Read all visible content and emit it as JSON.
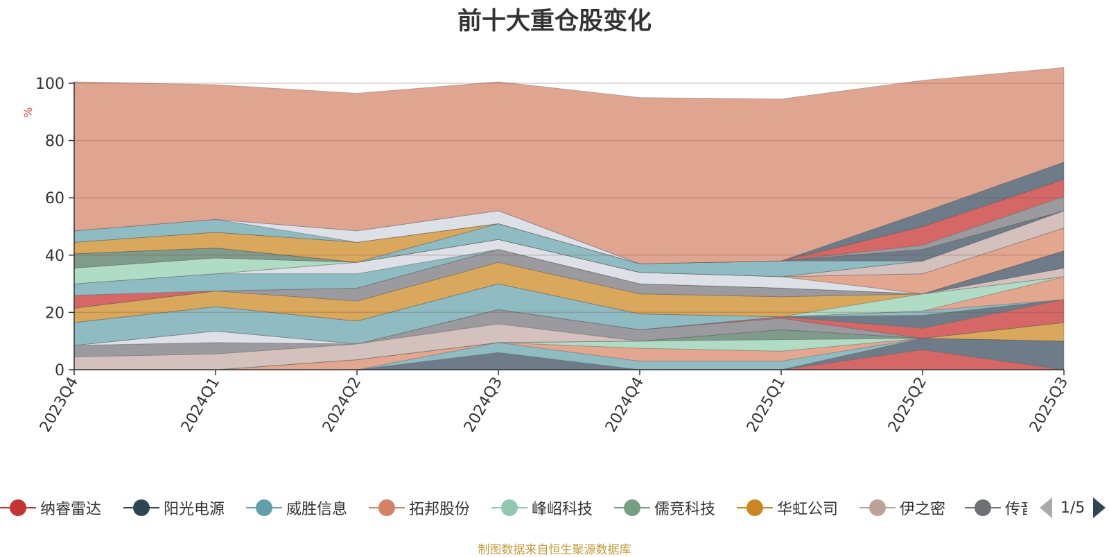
{
  "chart_data": {
    "type": "area",
    "stacked": true,
    "title": "前十大重仓股变化",
    "ylabel": "%",
    "ylim": [
      0,
      100
    ],
    "yticks": [
      0,
      20,
      40,
      60,
      80,
      100
    ],
    "categories": [
      "2023Q4",
      "2024Q1",
      "2024Q2",
      "2024Q3",
      "2024Q4",
      "2025Q1",
      "2025Q2",
      "2025Q3"
    ],
    "series": [
      {
        "color": "#d56866",
        "values": [
          0,
          0,
          0,
          0,
          0,
          0,
          7,
          0
        ]
      },
      {
        "color": "#6e7b88",
        "values": [
          0,
          0,
          0,
          6,
          0,
          0,
          4,
          10
        ]
      },
      {
        "color": "#8fbcc3",
        "values": [
          0,
          0,
          0,
          3.5,
          3,
          3,
          0,
          0
        ]
      },
      {
        "color": "#e3a68f",
        "values": [
          0,
          0,
          3.5,
          0,
          4.5,
          3.5,
          0,
          0
        ]
      },
      {
        "color": "#b0dcc6",
        "values": [
          0,
          0,
          0,
          0,
          2.5,
          4,
          0,
          0
        ]
      },
      {
        "color": "#7f9b8c",
        "values": [
          0,
          0,
          0,
          0,
          0,
          3.5,
          0,
          0
        ]
      },
      {
        "color": "#d9a85c",
        "values": [
          0,
          0,
          0,
          0,
          0,
          0,
          0,
          6.5
        ]
      },
      {
        "color": "#d4c0bc",
        "values": [
          4.5,
          5.5,
          5.5,
          6.5,
          0,
          0,
          0,
          0
        ]
      },
      {
        "color": "#9b9b9f",
        "values": [
          4,
          4,
          0,
          5,
          4,
          4,
          0,
          0
        ]
      },
      {
        "color": "#dde0e6",
        "values": [
          0,
          4,
          0,
          0,
          0,
          0,
          0,
          0
        ]
      },
      {
        "color": "#d56866",
        "values": [
          0,
          0,
          0,
          0,
          0,
          0.5,
          3.5,
          8
        ]
      },
      {
        "color": "#6e7b88",
        "values": [
          0,
          0,
          0,
          0,
          0,
          0,
          4.5,
          0
        ]
      },
      {
        "color": "#8fbcc3",
        "values": [
          8,
          8.5,
          8,
          9,
          5.5,
          0,
          1.5,
          0
        ]
      },
      {
        "color": "#e3a68f",
        "values": [
          0,
          0,
          0,
          0,
          0,
          0,
          0,
          8
        ]
      },
      {
        "color": "#b0dcc6",
        "values": [
          0,
          0,
          0,
          0,
          0,
          0,
          6,
          0
        ]
      },
      {
        "color": "#d9a85c",
        "values": [
          5,
          5.5,
          7,
          7.5,
          7,
          7,
          0,
          0
        ]
      },
      {
        "color": "#d4c0bc",
        "values": [
          0,
          0,
          0,
          0,
          0,
          0,
          0,
          3
        ]
      },
      {
        "color": "#9b9b9f",
        "values": [
          0,
          0,
          4.5,
          4.5,
          3.5,
          3,
          0,
          0
        ]
      },
      {
        "color": "#6e7b88",
        "values": [
          0,
          0,
          0,
          0,
          0,
          0,
          0,
          6
        ]
      },
      {
        "color": "#d56866",
        "values": [
          4.5,
          0,
          0,
          0,
          0,
          0,
          0,
          0
        ]
      },
      {
        "color": "#8fbcc3",
        "values": [
          4,
          6,
          5,
          0,
          0,
          0,
          0,
          0
        ]
      },
      {
        "color": "#dde0e6",
        "values": [
          0,
          0,
          4,
          3.5,
          4,
          4,
          0,
          0
        ]
      },
      {
        "color": "#e3a68f",
        "values": [
          0,
          0,
          0,
          0,
          0,
          0,
          7,
          8
        ]
      },
      {
        "color": "#b0dcc6",
        "values": [
          5.5,
          5.5,
          0,
          0,
          0,
          0,
          0,
          0
        ]
      },
      {
        "color": "#d4c0bc",
        "values": [
          0,
          0,
          0,
          0,
          0,
          0,
          4.5,
          6
        ]
      },
      {
        "color": "#7f9b8c",
        "values": [
          5,
          3.5,
          0,
          0,
          0,
          0,
          0,
          0
        ]
      },
      {
        "color": "#6e7b88",
        "values": [
          0,
          0,
          0,
          0,
          0,
          0,
          0,
          0
        ]
      },
      {
        "color": "#8fbcc3",
        "values": [
          0,
          0,
          0,
          5.5,
          3,
          5.5,
          0,
          0
        ]
      },
      {
        "color": "#6e7b88",
        "values": [
          0,
          0,
          0,
          0,
          0,
          0,
          4,
          0
        ]
      },
      {
        "color": "#d9a85c",
        "values": [
          4,
          5.5,
          7,
          0,
          0,
          0,
          0,
          0
        ]
      },
      {
        "color": "#9b9b9f",
        "values": [
          0,
          0,
          0,
          0,
          0,
          0,
          1.5,
          5
        ]
      },
      {
        "color": "#d56866",
        "values": [
          0,
          0,
          0,
          0,
          0,
          0,
          6.5,
          6
        ]
      },
      {
        "color": "#8fbcc3",
        "values": [
          4,
          4.5,
          0,
          0,
          0,
          0,
          0,
          0
        ]
      },
      {
        "color": "#dde0e6",
        "values": [
          0,
          0,
          4,
          4.5,
          0,
          0,
          0,
          0
        ]
      },
      {
        "color": "#6e7b88",
        "values": [
          0,
          0,
          0,
          0,
          0,
          0,
          5,
          6
        ]
      },
      {
        "color": "#e0a590",
        "values": [
          52,
          47,
          48,
          45,
          58,
          56.5,
          46,
          33
        ]
      }
    ]
  },
  "legend": {
    "items": [
      {
        "label": "纳睿雷达",
        "color": "#c23531"
      },
      {
        "label": "阳光电源",
        "color": "#2f4554"
      },
      {
        "label": "威胜信息",
        "color": "#61a0a8"
      },
      {
        "label": "拓邦股份",
        "color": "#d48265"
      },
      {
        "label": "峰岹科技",
        "color": "#91c7ae"
      },
      {
        "label": "儒竞科技",
        "color": "#749f83"
      },
      {
        "label": "华虹公司",
        "color": "#ca8622"
      },
      {
        "label": "伊之密",
        "color": "#bda29a"
      },
      {
        "label": "传音控股",
        "color": "#6e7074"
      }
    ],
    "page": "1/5"
  },
  "source_note": "制图数据来自恒生聚源数据库"
}
